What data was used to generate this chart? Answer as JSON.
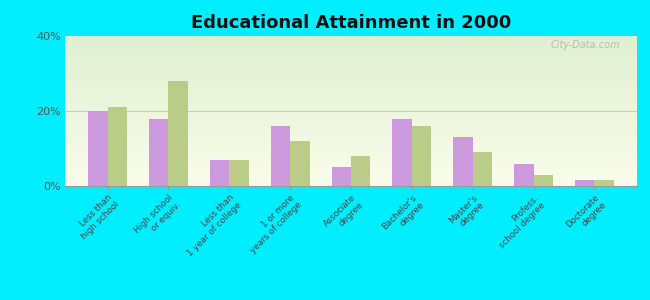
{
  "title": "Educational Attainment in 2000",
  "categories": [
    "Less than\nhigh school",
    "High school\nor equiv.",
    "Less than\n1 year of college",
    "1 or more\nyears of college",
    "Associate\ndegree",
    "Bachelor's\ndegree",
    "Master's\ndegree",
    "Profess.\nschool degree",
    "Doctorate\ndegree"
  ],
  "quioque_values": [
    20,
    18,
    7,
    16,
    5,
    18,
    13,
    6,
    1.5
  ],
  "newyork_values": [
    21,
    28,
    7,
    12,
    8,
    16,
    9,
    3,
    1.5
  ],
  "quioque_color": "#cc99dd",
  "newyork_color": "#bbcc88",
  "background_color": "#00eeff",
  "ylim": [
    0,
    40
  ],
  "yticks": [
    0,
    20,
    40
  ],
  "ytick_labels": [
    "0%",
    "20%",
    "40%"
  ],
  "watermark": "City-Data.com"
}
